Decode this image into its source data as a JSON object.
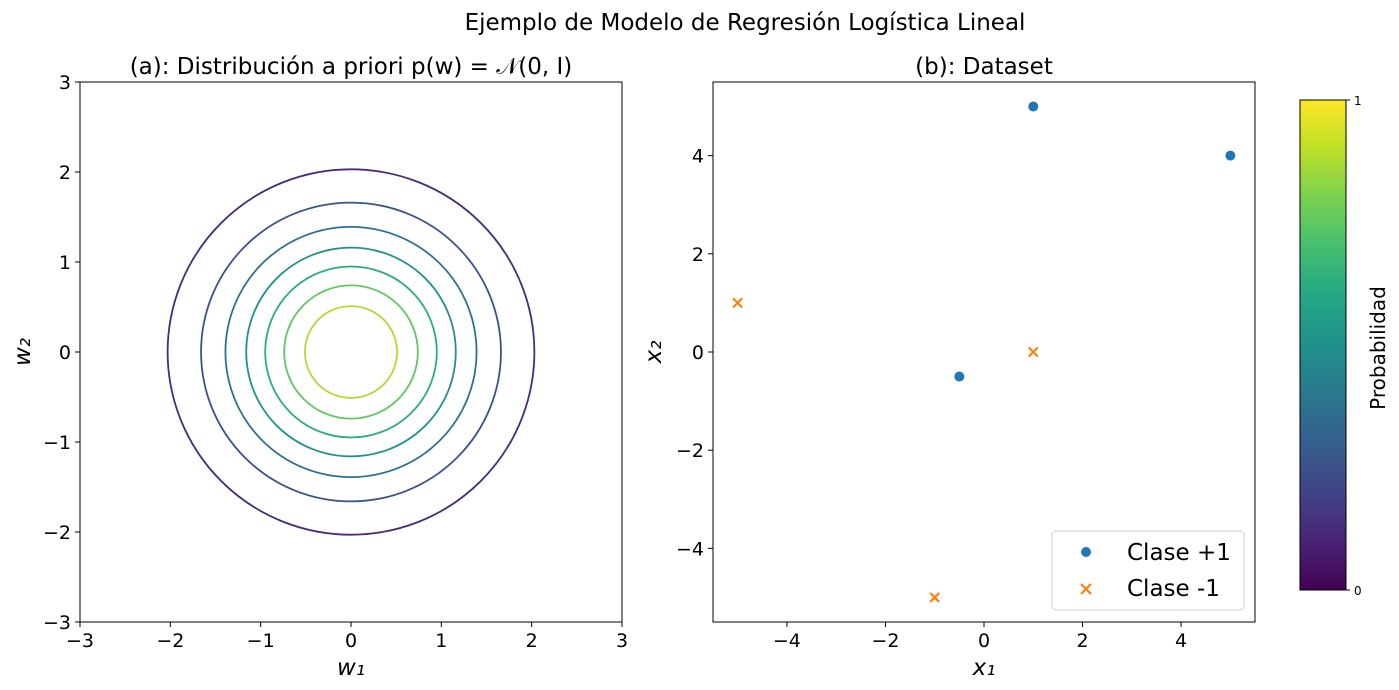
{
  "figure": {
    "suptitle": "Ejemplo de Modelo de Regresión Logística Lineal"
  },
  "chart_data": [
    {
      "type": "contour",
      "title": "(a): Distribución a priori p(w) = 𝒩(0, I)",
      "xlabel": "w₁",
      "ylabel": "w₂",
      "xlim": [
        -3,
        3
      ],
      "ylim": [
        -3,
        3
      ],
      "xticks": [
        "−3",
        "−2",
        "−1",
        "0",
        "1",
        "2",
        "3"
      ],
      "yticks": [
        "−3",
        "−2",
        "−1",
        "0",
        "1",
        "2",
        "3"
      ],
      "grid": false,
      "colormap": "viridis",
      "contours": [
        {
          "radius": 2.03,
          "color": "#472c7a"
        },
        {
          "radius": 1.66,
          "color": "#3b528b"
        },
        {
          "radius": 1.39,
          "color": "#2c728e"
        },
        {
          "radius": 1.16,
          "color": "#21918c"
        },
        {
          "radius": 0.95,
          "color": "#28ae80"
        },
        {
          "radius": 0.74,
          "color": "#5ec962"
        },
        {
          "radius": 0.51,
          "color": "#addc30"
        }
      ]
    },
    {
      "type": "scatter",
      "title": "(b): Dataset",
      "xlabel": "x₁",
      "ylabel": "x₂",
      "xlim": [
        -5.5,
        5.5
      ],
      "ylim": [
        -5.5,
        5.5
      ],
      "xticks": [
        "−4",
        "−2",
        "0",
        "2",
        "4"
      ],
      "yticks": [
        "−4",
        "−2",
        "0",
        "2",
        "4"
      ],
      "grid": false,
      "legend_position": "lower right",
      "series": [
        {
          "name": "Clase +1",
          "marker": "circle",
          "color": "#1f77b4",
          "points": [
            [
              1,
              5
            ],
            [
              5,
              4
            ],
            [
              -0.5,
              -0.5
            ]
          ]
        },
        {
          "name": "Clase -1",
          "marker": "x",
          "color": "#ff7f0e",
          "points": [
            [
              -5,
              1
            ],
            [
              1,
              0
            ],
            [
              -1,
              -5
            ]
          ]
        }
      ]
    },
    {
      "type": "colorbar",
      "label": "Probabilidad",
      "colormap": "viridis",
      "range": [
        0,
        1
      ],
      "ticks": [
        "0",
        "1"
      ]
    }
  ]
}
